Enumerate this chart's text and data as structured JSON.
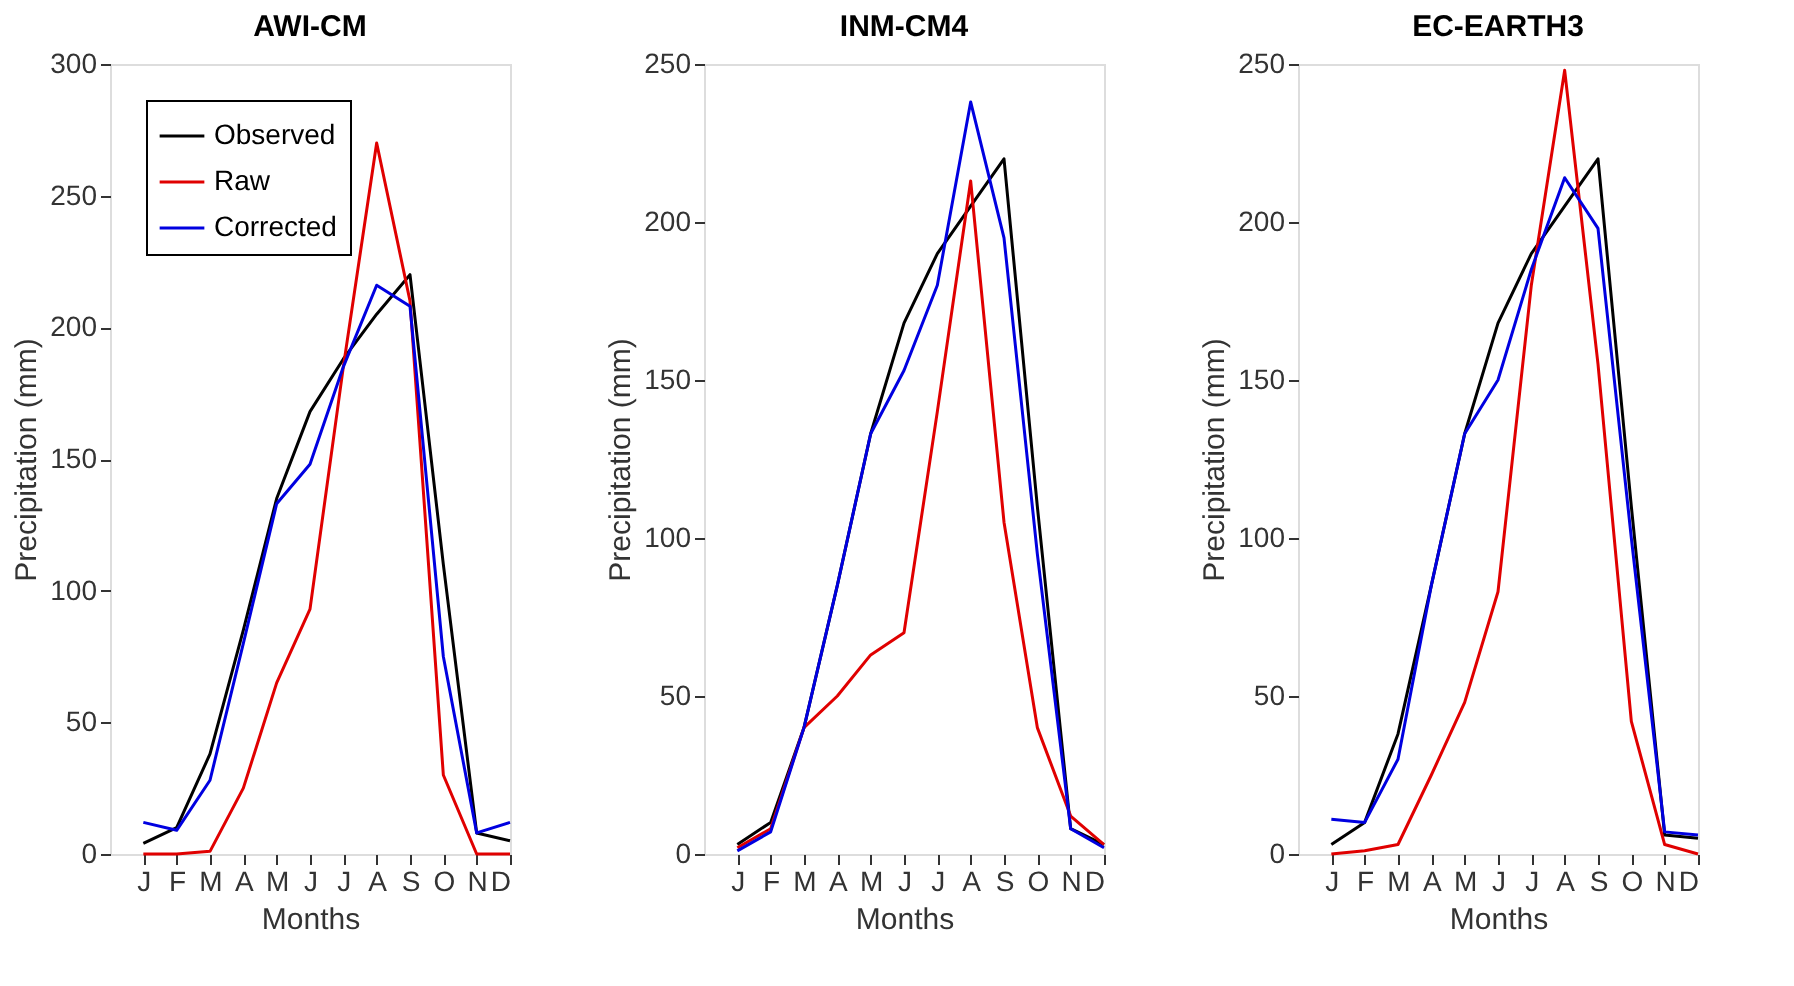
{
  "chart_data": [
    {
      "type": "line",
      "title": "AWI-CM",
      "xlabel": "Months",
      "ylabel": "Precipitation (mm)",
      "categories": [
        "J",
        "F",
        "M",
        "A",
        "M",
        "J",
        "J",
        "A",
        "S",
        "O",
        "N",
        "D"
      ],
      "ylim": [
        0,
        300
      ],
      "yticks": [
        0,
        50,
        100,
        150,
        200,
        250,
        300
      ],
      "grid": false,
      "legend": "top left",
      "line_style": "solid",
      "marker": "none",
      "series": [
        {
          "name": "Observed",
          "color": "#000000",
          "values": [
            4,
            10,
            38,
            85,
            135,
            168,
            188,
            205,
            220,
            110,
            8,
            5
          ]
        },
        {
          "name": "Raw",
          "color": "#e00000",
          "values": [
            0,
            0,
            1,
            25,
            65,
            93,
            185,
            270,
            210,
            30,
            0,
            0
          ]
        },
        {
          "name": "Corrected",
          "color": "#0000e0",
          "values": [
            12,
            9,
            28,
            80,
            133,
            148,
            185,
            216,
            208,
            75,
            8,
            12
          ]
        }
      ]
    },
    {
      "type": "line",
      "title": "INM-CM4",
      "xlabel": "Months",
      "ylabel": "Precipitation (mm)",
      "categories": [
        "J",
        "F",
        "M",
        "A",
        "M",
        "J",
        "J",
        "A",
        "S",
        "O",
        "N",
        "D"
      ],
      "ylim": [
        0,
        250
      ],
      "yticks": [
        0,
        50,
        100,
        150,
        200,
        250
      ],
      "grid": false,
      "legend": false,
      "line_style": "solid",
      "marker": "none",
      "series": [
        {
          "color": "#000000",
          "values": [
            3,
            10,
            40,
            85,
            133,
            168,
            190,
            205,
            220,
            110,
            8,
            3
          ]
        },
        {
          "color": "#e00000",
          "values": [
            2,
            8,
            40,
            50,
            63,
            70,
            140,
            213,
            105,
            40,
            12,
            3
          ]
        },
        {
          "color": "#0000e0",
          "values": [
            1,
            7,
            40,
            85,
            133,
            153,
            180,
            238,
            195,
            95,
            8,
            2
          ]
        }
      ]
    },
    {
      "type": "line",
      "title": "EC-EARTH3",
      "xlabel": "Months",
      "ylabel": "Precipitation (mm)",
      "categories": [
        "J",
        "F",
        "M",
        "A",
        "M",
        "J",
        "J",
        "A",
        "S",
        "O",
        "N",
        "D"
      ],
      "ylim": [
        0,
        250
      ],
      "yticks": [
        0,
        50,
        100,
        150,
        200,
        250
      ],
      "grid": false,
      "legend": false,
      "line_style": "solid",
      "marker": "none",
      "series": [
        {
          "color": "#000000",
          "values": [
            3,
            10,
            38,
            85,
            133,
            168,
            190,
            205,
            220,
            110,
            6,
            5
          ]
        },
        {
          "color": "#e00000",
          "values": [
            0,
            1,
            3,
            25,
            48,
            83,
            180,
            248,
            155,
            42,
            3,
            0
          ]
        },
        {
          "color": "#0000e0",
          "values": [
            11,
            10,
            30,
            85,
            133,
            150,
            185,
            214,
            198,
            100,
            7,
            6
          ]
        }
      ]
    }
  ]
}
